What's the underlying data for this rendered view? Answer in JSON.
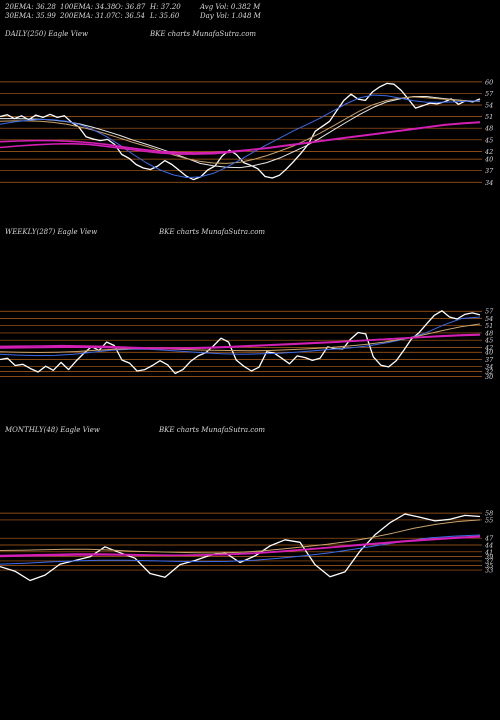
{
  "header": {
    "row1": [
      "20EMA: 36.28",
      "100EMA: 34.38",
      "O: 36.87",
      "H: 37.20",
      "Avg Vol: 0.382  M"
    ],
    "row2": [
      "30EMA: 35.99",
      "200EMA: 31.07",
      "C: 36.54",
      "L: 35.60",
      "Day Vol: 1.048  M"
    ]
  },
  "colors": {
    "background": "#000000",
    "grid": "#b4621e",
    "price": "#ffffff",
    "ema_fast": "#e8e8e8",
    "ema_mid": "#c9a36a",
    "ema_blue": "#3a6be8",
    "ema_magenta": "#d21fb4",
    "text": "#d8d8d8"
  },
  "chart_data": [
    {
      "type": "line",
      "title": "DAILY(250) Eagle  View",
      "watermark": "BKE charts MunafaSutra.com",
      "y_ticks": [
        60,
        57,
        54,
        51,
        48,
        45,
        42,
        40,
        37,
        34
      ],
      "ylim": [
        32,
        61
      ],
      "series": [
        {
          "role": "price",
          "color": "#ffffff",
          "values": [
            51,
            51.5,
            50.5,
            51.2,
            50.2,
            51.4,
            50.8,
            51.6,
            50.8,
            51.2,
            49.5,
            48.3,
            45.8,
            45.2,
            44.8,
            45.1,
            43.8,
            41.2,
            40.2,
            38.6,
            37.7,
            37.3,
            38.2,
            39.6,
            38.6,
            37.1,
            35.6,
            34.7,
            35.4,
            37.2,
            38.2,
            40.8,
            42.3,
            41.2,
            39.1,
            38.4,
            37.5,
            35.5,
            35.1,
            35.8,
            37.5,
            39.4,
            41.5,
            43.8,
            47.2,
            48.5,
            49.8,
            52.5,
            55.2,
            56.8,
            55.5,
            55.2,
            57.4,
            58.7,
            59.6,
            59.4,
            57.8,
            55.5,
            53.2,
            53.8,
            54.5,
            54.3,
            54.8,
            55.6,
            54.2,
            55.1,
            54.8,
            55.6
          ]
        },
        {
          "role": "ema",
          "color": "#e8e8e8",
          "values": [
            50.5,
            50.5,
            50.4,
            50.3,
            50.1,
            49.7,
            49.1,
            48.2,
            47.2,
            46.1,
            44.9,
            43.8,
            42.7,
            41.5,
            40.2,
            38.9,
            38.3,
            37.9,
            37.8,
            38.3,
            39.1,
            40.3,
            41.9,
            43.5,
            45.4,
            47.5,
            49.6,
            51.6,
            53.4,
            54.8,
            55.6,
            56.2,
            56.2,
            55.8,
            55.4,
            55.1,
            55.0
          ]
        },
        {
          "role": "ema",
          "color": "#c9a36a",
          "values": [
            49.8,
            49.9,
            49.9,
            49.8,
            49.5,
            49.0,
            48.3,
            47.5,
            46.5,
            45.4,
            44.3,
            43.3,
            42.2,
            41.1,
            40.1,
            39.4,
            39.0,
            38.9,
            39.2,
            39.9,
            40.9,
            42.1,
            43.4,
            45.0,
            46.7,
            48.6,
            50.6,
            52.5,
            54.1,
            55.2,
            55.8,
            56.1,
            55.9,
            55.6,
            55.3,
            55.1,
            55.0
          ]
        },
        {
          "role": "ema",
          "color": "#3a6be8",
          "values": [
            49.0,
            49.6,
            50.0,
            50.3,
            50.2,
            49.8,
            48.9,
            47.6,
            45.8,
            43.6,
            41.2,
            39.0,
            37.2,
            35.9,
            35.2,
            35.4,
            36.3,
            37.9,
            39.8,
            41.8,
            43.7,
            45.5,
            47.3,
            48.9,
            50.6,
            52.5,
            54.4,
            55.9,
            56.6,
            56.4,
            55.8,
            55.1,
            54.7,
            54.7,
            54.8,
            55.0,
            55.1
          ]
        },
        {
          "role": "ema",
          "color": "#d21fb4",
          "values": [
            43.0,
            43.4,
            43.7,
            43.9,
            44.0,
            43.8,
            43.3,
            42.7,
            42.1,
            41.6,
            41.3,
            41.3,
            41.4,
            41.8,
            42.3,
            42.8,
            43.4,
            44.0,
            44.6,
            45.2,
            45.8,
            46.4,
            47.0,
            47.6,
            48.2,
            48.8,
            49.2,
            49.5
          ]
        },
        {
          "role": "ema",
          "color": "#d21fb4",
          "values": [
            44.5,
            44.7,
            44.8,
            44.8,
            44.6,
            44.3,
            43.8,
            43.1,
            42.5,
            42.0,
            41.7,
            41.6,
            41.7,
            42.0,
            42.4,
            42.9,
            43.5,
            44.1,
            44.7,
            45.3,
            45.9,
            46.5,
            47.1,
            47.7,
            48.3,
            48.9,
            49.3,
            49.6
          ]
        }
      ]
    },
    {
      "type": "line",
      "title": "WEEKLY(287) Eagle  View",
      "watermark": "BKE charts MunafaSutra.com",
      "y_ticks": [
        57,
        54,
        51,
        48,
        45,
        42,
        40,
        37,
        34,
        32,
        30
      ],
      "ylim": [
        26,
        60
      ],
      "series": [
        {
          "role": "price",
          "color": "#ffffff",
          "values": [
            37,
            37.5,
            34.5,
            35,
            33.2,
            31.8,
            34.2,
            32.5,
            35.8,
            32.8,
            36.4,
            39.5,
            42.3,
            40.8,
            44.2,
            42.8,
            36.8,
            35.5,
            32.2,
            32.8,
            34.5,
            36.5,
            34.8,
            31.2,
            32.8,
            36.2,
            38.5,
            39.8,
            42.6,
            45.8,
            44.2,
            36.8,
            34.2,
            32.2,
            33.8,
            40.2,
            39.6,
            37.5,
            35.2,
            38.5,
            37.8,
            36.6,
            37.5,
            42.2,
            41.5,
            41.4,
            45.4,
            48.2,
            47.6,
            38.1,
            34.6,
            33.9,
            36.5,
            40.8,
            45.5,
            48.1,
            51.8,
            55.3,
            57.2,
            54.6,
            53.8,
            55.7,
            56.3,
            55.5
          ]
        },
        {
          "role": "ema",
          "color": "#3a6be8",
          "values": [
            39.2,
            38.8,
            38.6,
            38.7,
            39.2,
            40.0,
            40.8,
            41.2,
            41.2,
            40.8,
            40.3,
            39.8,
            39.4,
            39.2,
            39.3,
            39.5,
            40.0,
            40.6,
            41.2,
            41.8,
            42.7,
            44.0,
            45.6,
            47.8,
            51.2,
            54.0,
            54.6
          ]
        },
        {
          "role": "ema",
          "color": "#c9a36a",
          "values": [
            40.2,
            40.0,
            39.9,
            40.0,
            40.3,
            40.8,
            41.2,
            41.5,
            41.5,
            41.3,
            41.0,
            40.8,
            40.7,
            40.6,
            40.7,
            41.0,
            41.4,
            41.9,
            42.5,
            43.2,
            44.2,
            45.5,
            47.1,
            48.9,
            50.6,
            51.7
          ]
        },
        {
          "role": "ema",
          "color": "#d21fb4",
          "values": [
            42.4,
            42.5,
            42.6,
            42.7,
            42.6,
            42.4,
            42.1,
            41.8,
            41.7,
            41.8,
            42.0,
            42.3,
            42.7,
            43.1,
            43.5,
            43.9,
            44.3,
            44.7,
            45.2,
            45.7,
            46.2,
            46.7,
            47.1,
            47.4
          ]
        },
        {
          "role": "ema",
          "color": "#d21fb4",
          "values": [
            41.8,
            41.9,
            42.0,
            42.1,
            42.1,
            42.0,
            41.8,
            41.6,
            41.5,
            41.6,
            41.8,
            42.1,
            42.5,
            42.9,
            43.3,
            43.7,
            44.1,
            44.6,
            45.1,
            45.6,
            46.1,
            46.5,
            46.9,
            47.2
          ]
        }
      ]
    },
    {
      "type": "line",
      "title": "MONTHLY(48) Eagle  View",
      "watermark": "BKE charts MunafaSutra.com",
      "y_ticks": [
        58,
        55,
        47,
        44,
        41,
        39,
        37,
        35,
        33
      ],
      "ylim": [
        26,
        62
      ],
      "series": [
        {
          "role": "price",
          "color": "#ffffff",
          "values": [
            34.5,
            32.5,
            28.4,
            30.8,
            35.6,
            37.2,
            38.8,
            43.2,
            40.6,
            38.2,
            31.5,
            29.8,
            35.4,
            37.2,
            39.5,
            40.6,
            36.3,
            39.2,
            43.6,
            46.3,
            45.2,
            35.4,
            30.1,
            32.2,
            41.3,
            48.5,
            53.8,
            57.6,
            56.2,
            54.6,
            55.3,
            57.0,
            56.5
          ]
        },
        {
          "role": "ema",
          "color": "#c9a36a",
          "values": [
            41.6,
            41.7,
            41.9,
            42.1,
            42.1,
            41.8,
            41.3,
            41.0,
            40.8,
            40.6,
            40.5,
            40.8,
            41.4,
            42.3,
            43.3,
            44.3,
            45.6,
            47.2,
            49.2,
            51.4,
            53.1,
            54.3,
            55.0
          ]
        },
        {
          "role": "ema",
          "color": "#3a6be8",
          "values": [
            35.6,
            36.0,
            36.6,
            37.0,
            37.3,
            37.3,
            37.1,
            36.8,
            36.7,
            36.8,
            37.3,
            38.1,
            39.2,
            40.5,
            42.1,
            43.9,
            45.6,
            47.1,
            47.9,
            48.4
          ]
        },
        {
          "role": "ema",
          "color": "#d21fb4",
          "values": [
            39.4,
            39.6,
            39.8,
            40.0,
            40.0,
            39.8,
            39.6,
            39.5,
            39.6,
            39.8,
            40.3,
            41.0,
            41.9,
            42.8,
            43.7,
            44.6,
            45.5,
            46.3,
            47.0,
            47.6
          ]
        },
        {
          "role": "ema",
          "color": "#d21fb4",
          "values": [
            39.0,
            39.2,
            39.4,
            39.6,
            39.7,
            39.6,
            39.5,
            39.5,
            39.6,
            39.9,
            40.4,
            41.1,
            42.0,
            42.9,
            43.9,
            44.8,
            45.7,
            46.5,
            47.2,
            47.8
          ]
        }
      ]
    }
  ]
}
